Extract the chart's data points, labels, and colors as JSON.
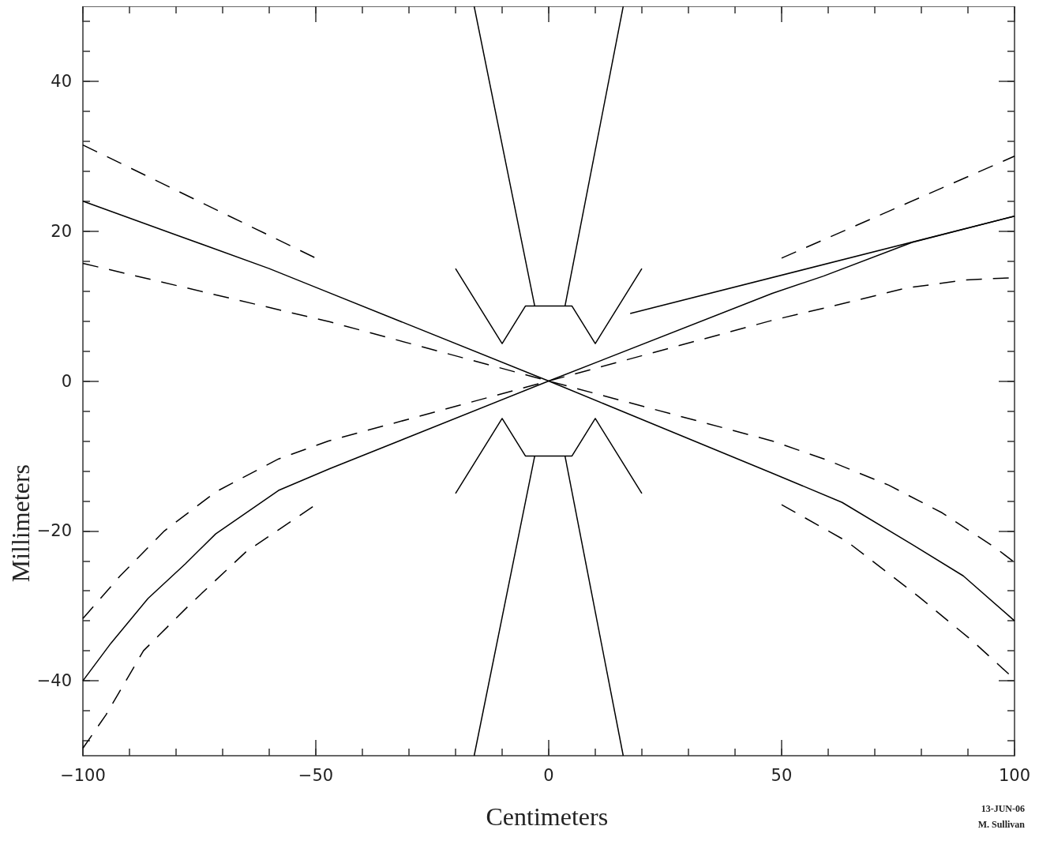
{
  "chart_data": {
    "type": "line",
    "xlabel": "Centimeters",
    "ylabel": "Millimeters",
    "xlim": [
      -100,
      100
    ],
    "ylim": [
      -50,
      50
    ],
    "xticks": [
      -100,
      -50,
      0,
      50,
      100
    ],
    "yticks": [
      -40,
      -20,
      0,
      20,
      40
    ],
    "grid": false,
    "marker": "none",
    "annotations": [
      "13-JUN-06",
      "M. Sullivan"
    ],
    "series": [
      {
        "color": "#000000",
        "line_style": "solid",
        "x": [
          -100,
          -80,
          -60,
          -50,
          0,
          48,
          63,
          78,
          89,
          100
        ],
        "values": [
          24,
          19.5,
          15,
          12.5,
          0,
          -12.3,
          -16.2,
          -21.8,
          -26,
          -32
        ]
      },
      {
        "color": "#000000",
        "line_style": "solid",
        "x": [
          -100,
          -94,
          -86,
          -78,
          -71.5,
          -58,
          -47,
          0,
          48,
          59,
          78,
          100
        ],
        "values": [
          -40,
          -35,
          -29,
          -24.4,
          -20.4,
          -14.6,
          -11.7,
          0,
          11.7,
          14,
          18.5,
          22
        ]
      },
      {
        "color": "#000000",
        "line_style": "solid",
        "x": [
          17.5,
          100
        ],
        "values": [
          9,
          22
        ]
      },
      {
        "color": "#000000",
        "line_style": "dashed",
        "x": [
          -100,
          -50
        ],
        "values": [
          31.5,
          16.4
        ]
      },
      {
        "color": "#000000",
        "line_style": "dashed",
        "x": [
          -100,
          -47,
          0,
          48,
          60,
          73,
          84.5,
          96,
          100
        ],
        "values": [
          15.7,
          7.9,
          0,
          -8,
          -10.6,
          -13.9,
          -17.6,
          -22.3,
          -24.2
        ]
      },
      {
        "color": "#000000",
        "line_style": "dashed",
        "x": [
          -100,
          -92,
          -82.5,
          -71.5,
          -58,
          -47.3,
          0,
          48,
          61,
          76.7,
          89.6,
          100
        ],
        "values": [
          -31.7,
          -26,
          -20,
          -14.8,
          -10.4,
          -8,
          0,
          8.1,
          10,
          12.4,
          13.5,
          13.8
        ]
      },
      {
        "color": "#000000",
        "line_style": "dashed",
        "x": [
          -100,
          -95,
          -87,
          -77,
          -65,
          -50
        ],
        "values": [
          -49,
          -44.5,
          -36,
          -29.8,
          -22.8,
          -16.5
        ]
      },
      {
        "color": "#000000",
        "line_style": "dashed",
        "x": [
          50,
          100
        ],
        "values": [
          16.4,
          30
        ]
      },
      {
        "color": "#000000",
        "line_style": "dashed",
        "x": [
          50,
          64,
          79.5,
          91,
          100
        ],
        "values": [
          -16.5,
          -21.4,
          -28.8,
          -34.7,
          -39.8
        ]
      },
      {
        "color": "#000000",
        "line_style": "solid",
        "x": [
          -20,
          -10,
          -5,
          5,
          10,
          20
        ],
        "values": [
          15,
          5,
          10,
          10,
          5,
          15
        ]
      },
      {
        "color": "#000000",
        "line_style": "solid",
        "x": [
          -20,
          -10,
          -5,
          5,
          10,
          20
        ],
        "values": [
          -15,
          -5,
          -10,
          -10,
          -5,
          -15
        ]
      },
      {
        "color": "#000000",
        "line_style": "solid",
        "x": [
          -16,
          -3
        ],
        "values": [
          50,
          10
        ]
      },
      {
        "color": "#000000",
        "line_style": "solid",
        "x": [
          3.5,
          16
        ],
        "values": [
          10,
          50
        ]
      },
      {
        "color": "#000000",
        "line_style": "solid",
        "x": [
          -16,
          -3
        ],
        "values": [
          -50,
          -10
        ]
      },
      {
        "color": "#000000",
        "line_style": "solid",
        "x": [
          3.5,
          16
        ],
        "values": [
          -10,
          -50
        ]
      }
    ]
  }
}
